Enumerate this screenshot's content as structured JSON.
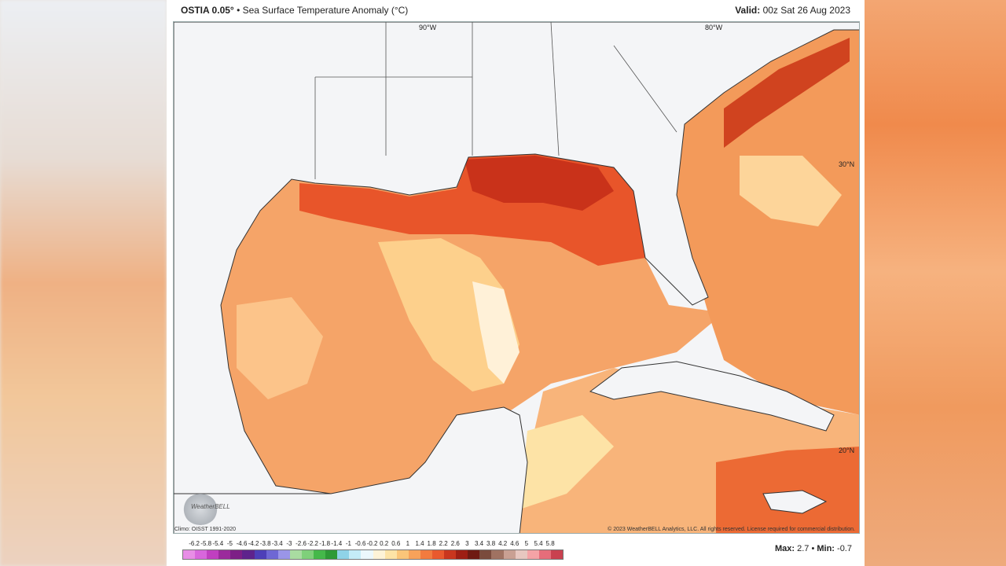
{
  "header": {
    "product": "OSTIA 0.05",
    "degree": "°",
    "title_rest": " • Sea Surface Temperature Anomaly (°C)",
    "valid_label": "Valid:",
    "valid_time": " 00z Sat 26 Aug 2023"
  },
  "map": {
    "lon_labels": [
      "90°W",
      "80°W"
    ],
    "lat_labels": [
      "30°N",
      "20°N"
    ]
  },
  "footer": {
    "climo": "Climo: OISST 1991-2020",
    "copyright": "© 2023 WeatherBELL Analytics, LLC. All rights reserved. License required for commercial distribution.",
    "logo_text": "WeatherBELL",
    "max_label": "Max:",
    "max_value": "2.7",
    "min_label": "Min:",
    "min_value": "-0.7"
  },
  "colorbar": {
    "ticks": [
      "-6.2",
      "-5.8",
      "-5.4",
      "-5",
      "-4.6",
      "-4.2",
      "-3.8",
      "-3.4",
      "-3",
      "-2.6",
      "-2.2",
      "-1.8",
      "-1.4",
      "-1",
      "-0.6",
      "-0.2",
      "0.2",
      "0.6",
      "1",
      "1.4",
      "1.8",
      "2.2",
      "2.6",
      "3",
      "3.4",
      "3.8",
      "4.2",
      "4.6",
      "5",
      "5.4",
      "5.8"
    ],
    "colors": [
      "#e88ee6",
      "#d866dc",
      "#c03fc0",
      "#9b2a9c",
      "#7d1f86",
      "#5e238c",
      "#4d3fb8",
      "#6e67d4",
      "#9a95e8",
      "#a9dca1",
      "#7fd07a",
      "#45b84a",
      "#2e9a36",
      "#8fd3e8",
      "#c4ecf7",
      "#ecf8fc",
      "#fdf3d7",
      "#fde3a6",
      "#fbc579",
      "#f7a25a",
      "#f27b3f",
      "#e9592e",
      "#c9361e",
      "#9e1f14",
      "#6f1a12",
      "#7a4b3d",
      "#a07262",
      "#c9a093",
      "#e7c7c0",
      "#f4a3a6",
      "#e66d7a",
      "#c9414f"
    ]
  }
}
